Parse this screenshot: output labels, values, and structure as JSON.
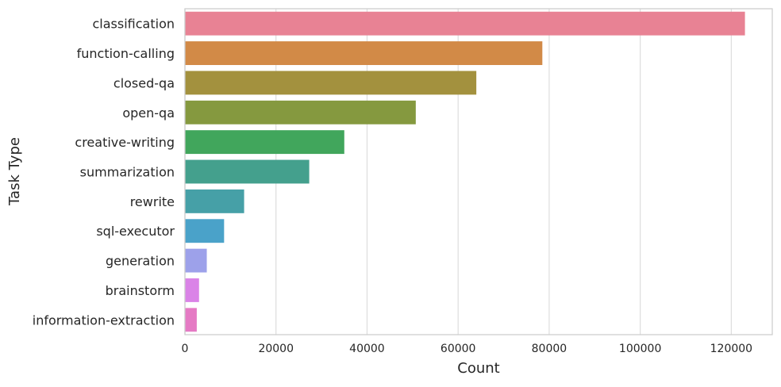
{
  "chart_data": {
    "type": "bar",
    "orientation": "horizontal",
    "title": "",
    "xlabel": "Count",
    "ylabel": "Task Type",
    "xlim": [
      0,
      129000
    ],
    "xticks": [
      0,
      20000,
      40000,
      60000,
      80000,
      100000,
      120000
    ],
    "grid": "vertical",
    "legend": "none",
    "categories": [
      "classification",
      "function-calling",
      "closed-qa",
      "open-qa",
      "creative-writing",
      "summarization",
      "rewrite",
      "sql-executor",
      "generation",
      "brainstorm",
      "information-extraction"
    ],
    "values": [
      123000,
      78500,
      64000,
      50700,
      35000,
      27300,
      13000,
      8600,
      4800,
      3100,
      2600
    ],
    "colors": [
      "#e88294",
      "#d28a47",
      "#a3913e",
      "#85993f",
      "#41a65c",
      "#44a08d",
      "#46a0a7",
      "#4aa2c9",
      "#9da1ea",
      "#da83e7",
      "#e57ac4"
    ]
  }
}
